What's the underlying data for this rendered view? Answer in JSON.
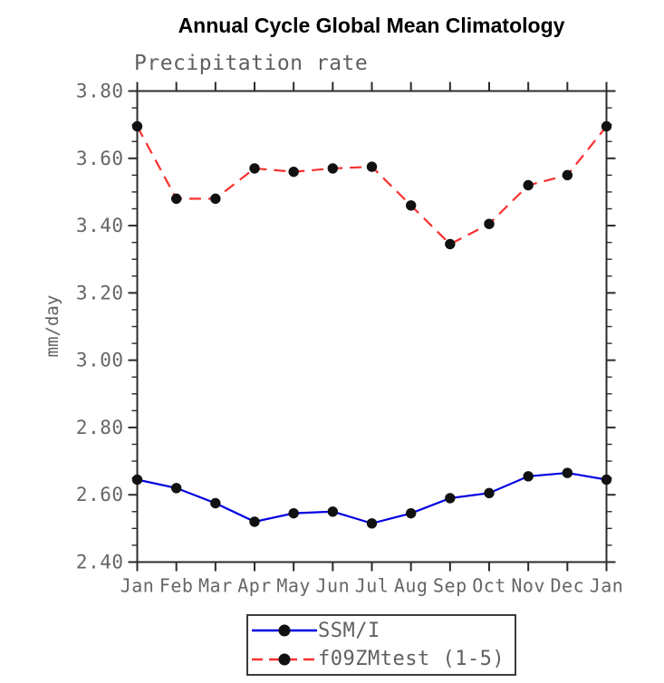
{
  "title": "Annual Cycle Global Mean Climatology",
  "subtitle": "Precipitation rate",
  "chart_data": {
    "type": "line",
    "title": "Annual Cycle Global Mean Climatology",
    "subtitle": "Precipitation rate",
    "xlabel": "",
    "ylabel": "mm/day",
    "x_categories": [
      "Jan",
      "Feb",
      "Mar",
      "Apr",
      "May",
      "Jun",
      "Jul",
      "Aug",
      "Sep",
      "Oct",
      "Nov",
      "Dec",
      "Jan"
    ],
    "ylim": [
      2.4,
      3.8
    ],
    "y_tick_values": [
      2.4,
      2.6,
      2.8,
      3.0,
      3.2,
      3.4,
      3.6,
      3.8
    ],
    "y_tick_labels": [
      "2.40",
      "2.60",
      "2.80",
      "3.00",
      "3.20",
      "3.40",
      "3.60",
      "3.80"
    ],
    "y_minor_step": 0.05,
    "grid": false,
    "legend_position": "bottom-center",
    "series": [
      {
        "name": "SSM/I",
        "color": "#0000e0",
        "line_style": "solid",
        "marker": "filled-circle",
        "marker_color": "#111111",
        "values": [
          2.645,
          2.62,
          2.575,
          2.52,
          2.545,
          2.55,
          2.515,
          2.545,
          2.59,
          2.605,
          2.655,
          2.665,
          2.645
        ]
      },
      {
        "name": "f09ZMtest (1-5)",
        "color": "#f83030",
        "line_style": "dashed",
        "marker": "filled-circle",
        "marker_color": "#111111",
        "values": [
          3.695,
          3.48,
          3.48,
          3.57,
          3.56,
          3.57,
          3.575,
          3.46,
          3.345,
          3.405,
          3.52,
          3.55,
          3.695
        ]
      }
    ]
  },
  "colors": {
    "axis": "#2b2b2b",
    "tick_label": "#666666",
    "title_text": "#000000",
    "subtitle_text": "#5f5f5f",
    "series_blue": "#0000e0",
    "series_red": "#f83030",
    "marker": "#111111"
  }
}
